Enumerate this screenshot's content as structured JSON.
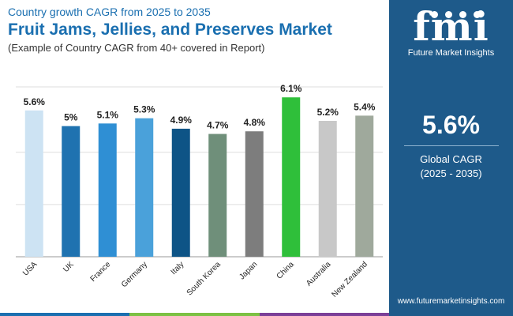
{
  "header": {
    "subtitle": "Country growth CAGR from 2025 to 2035",
    "title": "Fruit Jams, Jellies, and Preserves Market",
    "note": "(Example of Country CAGR from 40+ covered in Report)"
  },
  "brand": {
    "logo_mark": "fmi",
    "logo_text": "Future Market Insights",
    "website": "www.futuremarketinsights.com"
  },
  "kpi": {
    "value": "5.6%",
    "label": "Global CAGR",
    "period": "(2025 - 2035)"
  },
  "colors": {
    "brand_blue": "#1a6fb0",
    "sidebar": "#1e5a8a",
    "bottom_bar": [
      "#1a6fb0",
      "#7cc143",
      "#7b3f98"
    ]
  },
  "chart_data": {
    "type": "bar",
    "title": "Fruit Jams, Jellies, and Preserves Market",
    "xlabel": "",
    "ylabel": "",
    "ylim": [
      0,
      6.5
    ],
    "grid": true,
    "categories": [
      "USA",
      "UK",
      "France",
      "Germany",
      "Italy",
      "South Korea",
      "Japan",
      "China",
      "Australia",
      "New Zealand"
    ],
    "values": [
      5.6,
      5.0,
      5.1,
      5.3,
      4.9,
      4.7,
      4.8,
      6.1,
      5.2,
      5.4
    ],
    "labels": [
      "5.6%",
      "5%",
      "5.1%",
      "5.3%",
      "4.9%",
      "4.7%",
      "4.8%",
      "6.1%",
      "5.2%",
      "5.4%"
    ],
    "colors": [
      "#cde3f3",
      "#1f72b0",
      "#2f8fd4",
      "#4aa1da",
      "#0e5486",
      "#6f8f7a",
      "#7d7d7d",
      "#2fbf3a",
      "#c8c8c8",
      "#9fa99c"
    ]
  }
}
